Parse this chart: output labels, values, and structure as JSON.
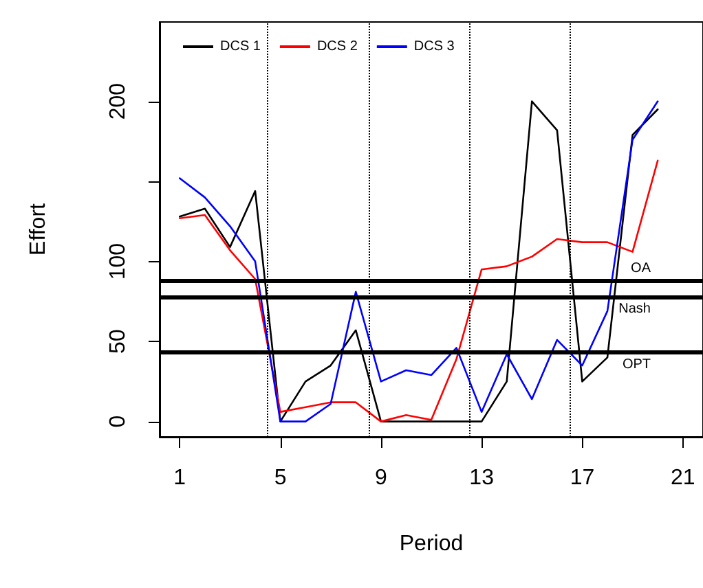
{
  "chart_data": {
    "type": "line",
    "xlabel": "Period",
    "ylabel": "Effort",
    "x": [
      1,
      2,
      3,
      4,
      5,
      6,
      7,
      8,
      9,
      10,
      11,
      12,
      13,
      14,
      15,
      16,
      17,
      18,
      19,
      20
    ],
    "series": [
      {
        "name": "DCS 1",
        "color": "#000000",
        "values": [
          128,
          133,
          109,
          144,
          0,
          25,
          35,
          57,
          0,
          0,
          0,
          0,
          0,
          25,
          200,
          182,
          25,
          40,
          179,
          195
        ]
      },
      {
        "name": "DCS 2",
        "color": "#ff0000",
        "values": [
          127,
          129,
          107,
          89,
          6,
          9,
          12,
          12,
          0,
          4,
          1,
          39,
          95,
          97,
          103,
          114,
          112,
          112,
          106,
          163
        ]
      },
      {
        "name": "DCS 3",
        "color": "#0000ff",
        "values": [
          152,
          140,
          122,
          100,
          0,
          0,
          11,
          81,
          25,
          32,
          29,
          46,
          6,
          42,
          14,
          51,
          35,
          69,
          176,
          200
        ]
      }
    ],
    "xlim": [
      0.2,
      21.8
    ],
    "xticks": [
      1,
      5,
      9,
      13,
      17,
      21
    ],
    "ylim": [
      -9.6,
      249.6
    ],
    "yticks": [
      0,
      50,
      100,
      {
        "value": 150,
        "label": null
      },
      200
    ],
    "ref_lines": [
      {
        "axis": "y",
        "value": 88,
        "label": "OA",
        "color": "#000000",
        "line_style": "solid"
      },
      {
        "axis": "y",
        "value": 78,
        "label": "Nash",
        "color": "#000000",
        "line_style": "solid"
      },
      {
        "axis": "y",
        "value": 43,
        "label": "OPT",
        "color": "#000000",
        "line_style": "solid"
      },
      {
        "axis": "x",
        "value": 4.5,
        "label": null,
        "color": "#000000",
        "line_style": "dotted"
      },
      {
        "axis": "x",
        "value": 8.5,
        "label": null,
        "color": "#000000",
        "line_style": "dotted"
      },
      {
        "axis": "x",
        "value": 12.5,
        "label": null,
        "color": "#000000",
        "line_style": "dotted"
      },
      {
        "axis": "x",
        "value": 16.5,
        "label": null,
        "color": "#000000",
        "line_style": "dotted"
      }
    ],
    "grid": false,
    "legend": "top left",
    "marker": "none",
    "line_style": "solid"
  }
}
